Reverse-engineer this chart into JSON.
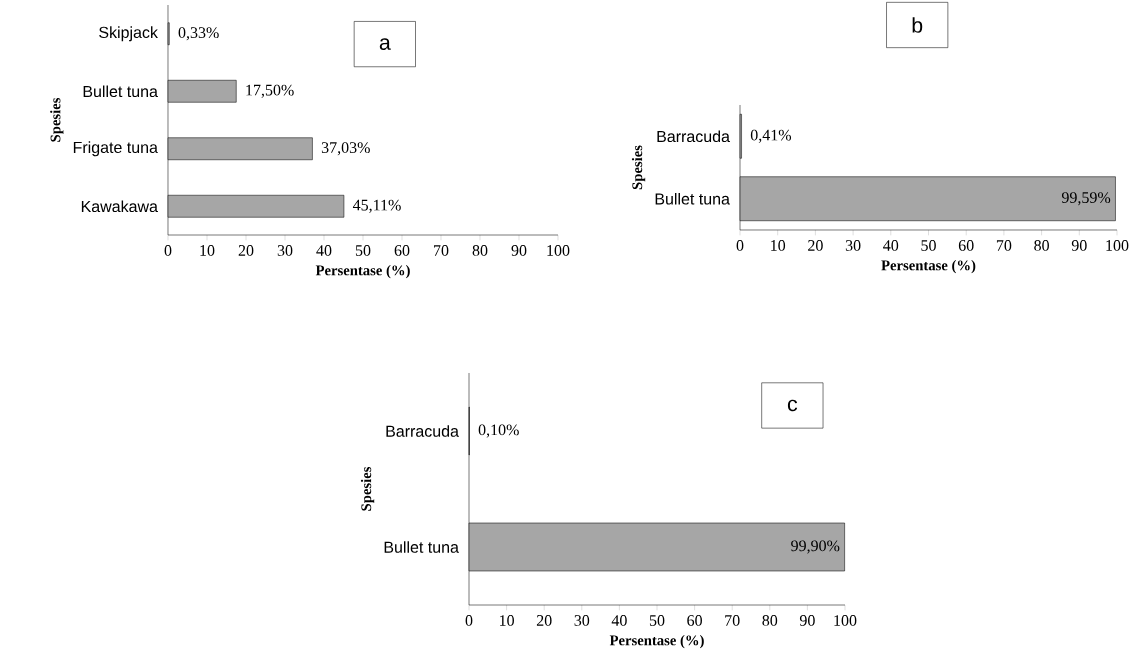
{
  "chart_data": [
    {
      "type": "bar",
      "orientation": "horizontal",
      "categories": [
        "Skipjack",
        "Bullet tuna",
        "Frigate tuna",
        "Kawakawa"
      ],
      "values": [
        0.33,
        17.5,
        37.03,
        45.11
      ],
      "value_labels": [
        "0,33%",
        "17,50%",
        "37,03%",
        "45,11%"
      ],
      "color": "#a6a6a6",
      "xlabel": "Persentase (%)",
      "ylabel": "Spesies",
      "xlim": [
        0,
        100
      ],
      "xticks": [
        0,
        10,
        20,
        30,
        40,
        50,
        60,
        70,
        80,
        90,
        100
      ],
      "annotations": [
        "a"
      ]
    },
    {
      "type": "bar",
      "orientation": "horizontal",
      "categories": [
        "Barracuda",
        "Bullet tuna"
      ],
      "values": [
        0.41,
        99.59
      ],
      "value_labels": [
        "0,41%",
        "99,59%"
      ],
      "color": "#a6a6a6",
      "xlabel": "Persentase (%)",
      "ylabel": "Spesies",
      "xlim": [
        0,
        100
      ],
      "xticks": [
        0,
        10,
        20,
        30,
        40,
        50,
        60,
        70,
        80,
        90,
        100
      ],
      "annotations": [
        "b"
      ]
    },
    {
      "type": "bar",
      "orientation": "horizontal",
      "categories": [
        "Barracuda",
        "Bullet tuna"
      ],
      "values": [
        0.1,
        99.9
      ],
      "value_labels": [
        "0,10%",
        "99,90%"
      ],
      "color": "#a6a6a6",
      "xlabel": "Persentase (%)",
      "ylabel": "Spesies",
      "xlim": [
        0,
        100
      ],
      "xticks": [
        0,
        10,
        20,
        30,
        40,
        50,
        60,
        70,
        80,
        90,
        100
      ],
      "annotations": [
        "c"
      ]
    }
  ]
}
